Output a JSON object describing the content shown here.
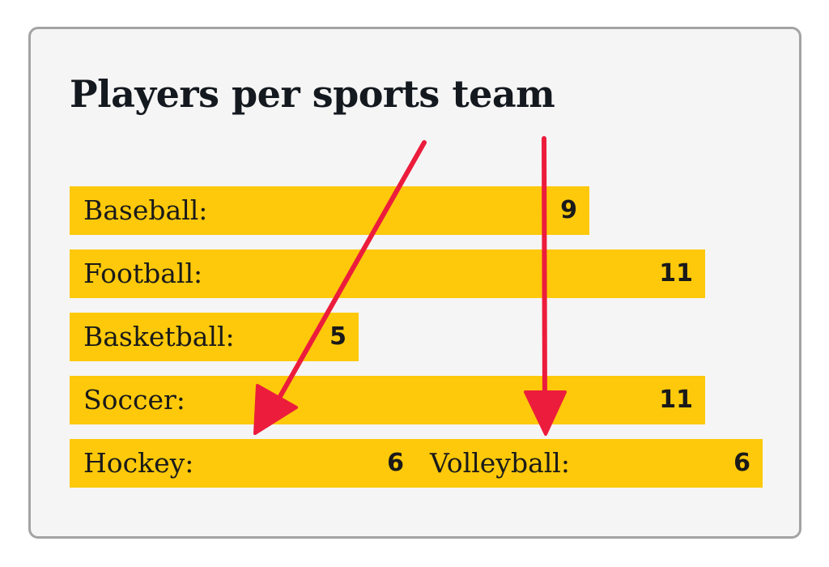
{
  "chart_data": {
    "type": "bar",
    "title": "Players per sports team",
    "categories": [
      "Baseball:",
      "Football:",
      "Basketball:",
      "Soccer:",
      "Hockey:",
      "Volleyball:"
    ],
    "values": [
      9,
      11,
      5,
      11,
      6,
      6
    ],
    "xlabel": "",
    "ylabel": "",
    "grid": false,
    "legend": "none",
    "bar_color": "#fdc90a",
    "annotations": [
      {
        "type": "arrow",
        "from_category": "title",
        "to_category": "Hockey:",
        "color": "#ec1c3c"
      },
      {
        "type": "arrow",
        "from_category": "title",
        "to_category": "Volleyball:",
        "color": "#ec1c3c"
      }
    ]
  },
  "colors": {
    "bar": "#fdc90a",
    "arrow": "#ec1c3c",
    "card_background": "#f5f5f5",
    "card_border": "#a3a3a3",
    "text": "#14191f"
  }
}
